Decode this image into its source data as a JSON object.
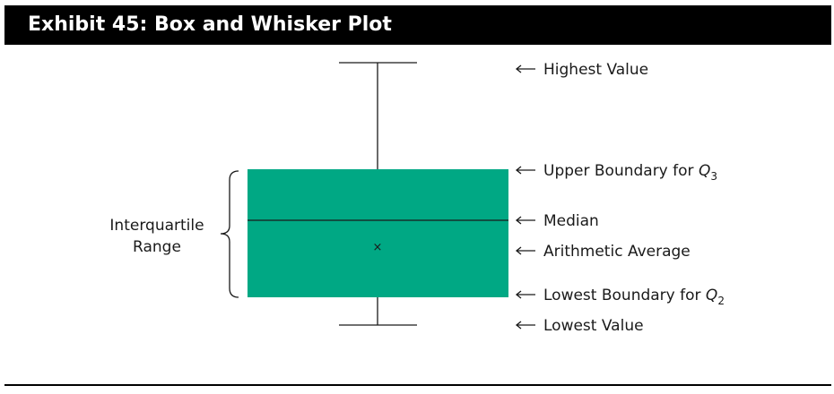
{
  "exhibit": {
    "title": "Exhibit 45: Box and Whisker Plot"
  },
  "diagram": {
    "box_color": "#00a884",
    "mean_marker": "×",
    "iqr_label_line1": "Interquartile",
    "iqr_label_line2": "Range",
    "annotations": {
      "highest": "Highest Value",
      "upper": "Upper Boundary for ",
      "upper_var": "Q",
      "upper_sub": "3",
      "median": "Median",
      "average": "Arithmetic Average",
      "lower": "Lowest Boundary for ",
      "lower_var": "Q",
      "lower_sub": "2",
      "lowest": "Lowest Value"
    }
  }
}
